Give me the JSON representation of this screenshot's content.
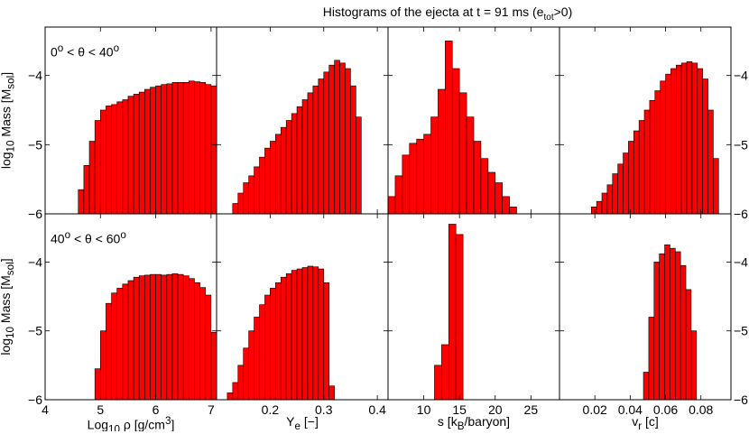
{
  "title_parts": {
    "pre": "Histograms of the ejecta at t = 91 ms (e",
    "sub": "tot",
    "post": ">0)"
  },
  "chart_data": {
    "type": "bar",
    "title": "Histograms of the ejecta at t = 91 ms (e_tot>0)",
    "ylabel": "log10 Mass [Msol]",
    "ylim": [
      -6,
      -3.3
    ],
    "yticks": [
      "−6",
      "−5",
      "−4"
    ],
    "bar_color": "#ff0000",
    "grid": false,
    "rows": [
      {
        "label_html": "0<sup>o</sup> &lt; θ &lt; 40<sup>o</sup>",
        "ylabel_html": "log<sub>10</sub> Mass [M<sub>sol</sub>]"
      },
      {
        "label_html": "40<sup>o</sup> &lt; θ &lt; 60<sup>o</sup>",
        "ylabel_html": "log<sub>10</sub> Mass [M<sub>sol</sub>]"
      }
    ],
    "columns": [
      {
        "xlabel_html": "Log<sub>10</sub> ρ [g/cm<sup>3</sup>]",
        "xlim": [
          4,
          7.1
        ],
        "xticks": [
          4,
          5,
          6,
          7
        ],
        "xtick_labels": [
          "4",
          "5",
          "6",
          "7"
        ],
        "bin_width": 0.1,
        "series": [
          {
            "row": 0,
            "x_start": 4.6,
            "values": [
              -5.65,
              -5.3,
              -4.95,
              -4.65,
              -4.5,
              -4.44,
              -4.42,
              -4.38,
              -4.35,
              -4.3,
              -4.27,
              -4.24,
              -4.2,
              -4.17,
              -4.15,
              -4.13,
              -4.12,
              -4.1,
              -4.1,
              -4.1,
              -4.08,
              -4.09,
              -4.1,
              -4.13,
              -4.15
            ]
          },
          {
            "row": 1,
            "x_start": 4.9,
            "values": [
              -5.55,
              -5.0,
              -4.6,
              -4.45,
              -4.38,
              -4.32,
              -4.27,
              -4.22,
              -4.2,
              -4.19,
              -4.18,
              -4.18,
              -4.19,
              -4.18,
              -4.17,
              -4.18,
              -4.2,
              -4.24,
              -4.3,
              -4.37,
              -4.48,
              -5.02
            ]
          }
        ]
      },
      {
        "xlabel_html": "Y<sub>e</sub> [−]",
        "xlim": [
          0.1,
          0.42
        ],
        "xticks": [
          0.2,
          0.3,
          0.4
        ],
        "xtick_labels": [
          "0.2",
          "0.3",
          "0.4"
        ],
        "bin_width": 0.01,
        "series": [
          {
            "row": 0,
            "x_start": 0.13,
            "values": [
              -5.85,
              -5.7,
              -5.55,
              -5.45,
              -5.32,
              -5.18,
              -5.05,
              -4.95,
              -4.85,
              -4.75,
              -4.65,
              -4.55,
              -4.45,
              -4.35,
              -4.25,
              -4.15,
              -4.05,
              -3.95,
              -3.85,
              -3.78,
              -3.82,
              -3.9,
              -4.15,
              -4.6
            ]
          },
          {
            "row": 1,
            "x_start": 0.12,
            "values": [
              -5.9,
              -5.75,
              -5.5,
              -5.25,
              -5.0,
              -4.8,
              -4.62,
              -4.48,
              -4.38,
              -4.3,
              -4.22,
              -4.17,
              -4.12,
              -4.1,
              -4.08,
              -4.06,
              -4.07,
              -4.1,
              -4.3,
              -5.8
            ]
          }
        ]
      },
      {
        "xlabel_html": "s [k<sub>B</sub>/baryon]",
        "xlim": [
          5,
          29
        ],
        "xticks": [
          10,
          15,
          20,
          25
        ],
        "xtick_labels": [
          "10",
          "15",
          "20",
          "25"
        ],
        "bin_width": 1,
        "series": [
          {
            "row": 0,
            "x_start": 5,
            "values": [
              -5.75,
              -5.45,
              -5.15,
              -4.98,
              -4.92,
              -4.85,
              -4.6,
              -4.2,
              -3.5,
              -3.9,
              -4.25,
              -4.6,
              -4.95,
              -5.2,
              -5.4,
              -5.55,
              -5.75,
              -5.9
            ]
          },
          {
            "row": 1,
            "x_start": 10.5,
            "values": [
              -6.0,
              -5.5,
              -5.2,
              -3.45,
              -3.6
            ]
          }
        ]
      },
      {
        "xlabel_html": "v<sub>r</sub> [c]",
        "xlim": [
          0,
          0.097
        ],
        "xticks": [
          0.02,
          0.04,
          0.06,
          0.08
        ],
        "xtick_labels": [
          "0.02",
          "0.04",
          "0.06",
          "0.08"
        ],
        "bin_width": 0.003,
        "series": [
          {
            "row": 0,
            "x_start": 0.018,
            "values": [
              -5.9,
              -5.82,
              -5.7,
              -5.58,
              -5.42,
              -5.28,
              -5.12,
              -4.95,
              -4.8,
              -4.65,
              -4.5,
              -4.36,
              -4.22,
              -4.08,
              -3.98,
              -3.9,
              -3.85,
              -3.82,
              -3.8,
              -3.82,
              -3.9,
              -4.05,
              -4.5,
              -5.2
            ]
          },
          {
            "row": 1,
            "x_start": 0.0475,
            "values": [
              -5.6,
              -4.8,
              -4.0,
              -3.88,
              -3.75,
              -3.8,
              -3.85,
              -4.05,
              -4.4,
              -5.0
            ]
          }
        ]
      }
    ]
  }
}
